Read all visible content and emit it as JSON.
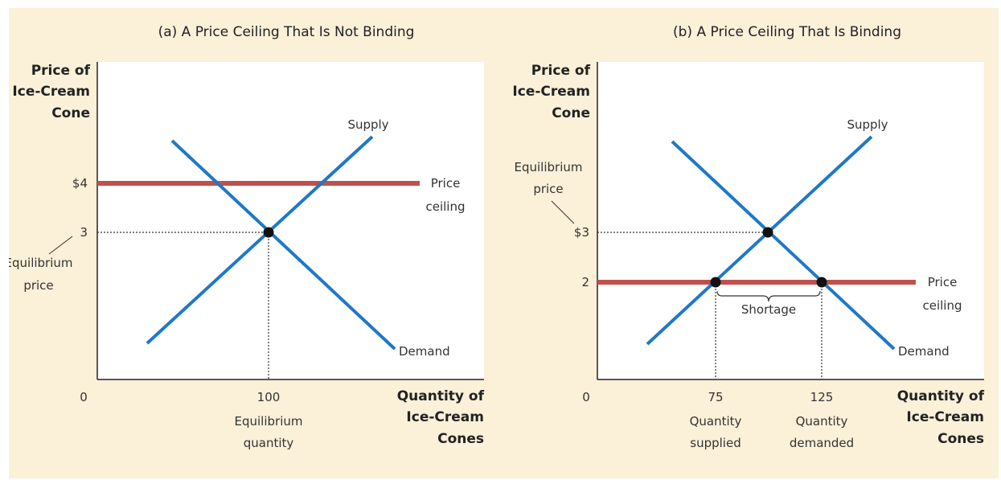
{
  "colors": {
    "background": "#fbf0d8",
    "plot_area": "#ffffff",
    "curve": "#1f78c8",
    "ceiling": "#c0504d",
    "dots": "#111111"
  },
  "panel_a": {
    "title": "(a) A Price Ceiling That Is Not Binding",
    "y_axis_title": [
      "Price of",
      "Ice-Cream",
      "Cone"
    ],
    "x_axis_title": [
      "Quantity of",
      "Ice-Cream",
      "Cones"
    ],
    "origin": "0",
    "price_ceiling_tick": "$4",
    "equilibrium_price_tick": "3",
    "equilibrium_quantity_tick": "100",
    "equilibrium_price_label": [
      "Equilibrium",
      "price"
    ],
    "equilibrium_quantity_label": [
      "Equilibrium",
      "quantity"
    ],
    "supply_label": "Supply",
    "demand_label": "Demand",
    "ceiling_label": [
      "Price",
      "ceiling"
    ]
  },
  "panel_b": {
    "title": "(b) A Price Ceiling That Is Binding",
    "y_axis_title": [
      "Price of",
      "Ice-Cream",
      "Cone"
    ],
    "x_axis_title": [
      "Quantity of",
      "Ice-Cream",
      "Cones"
    ],
    "origin": "0",
    "equilibrium_price_tick": "$3",
    "price_ceiling_tick": "2",
    "quantity_supplied_tick": "75",
    "quantity_demanded_tick": "125",
    "equilibrium_price_label": [
      "Equilibrium",
      "price"
    ],
    "quantity_supplied_label": [
      "Quantity",
      "supplied"
    ],
    "quantity_demanded_label": [
      "Quantity",
      "demanded"
    ],
    "shortage_label": "Shortage",
    "supply_label": "Supply",
    "demand_label": "Demand",
    "ceiling_label": [
      "Price",
      "ceiling"
    ]
  }
}
